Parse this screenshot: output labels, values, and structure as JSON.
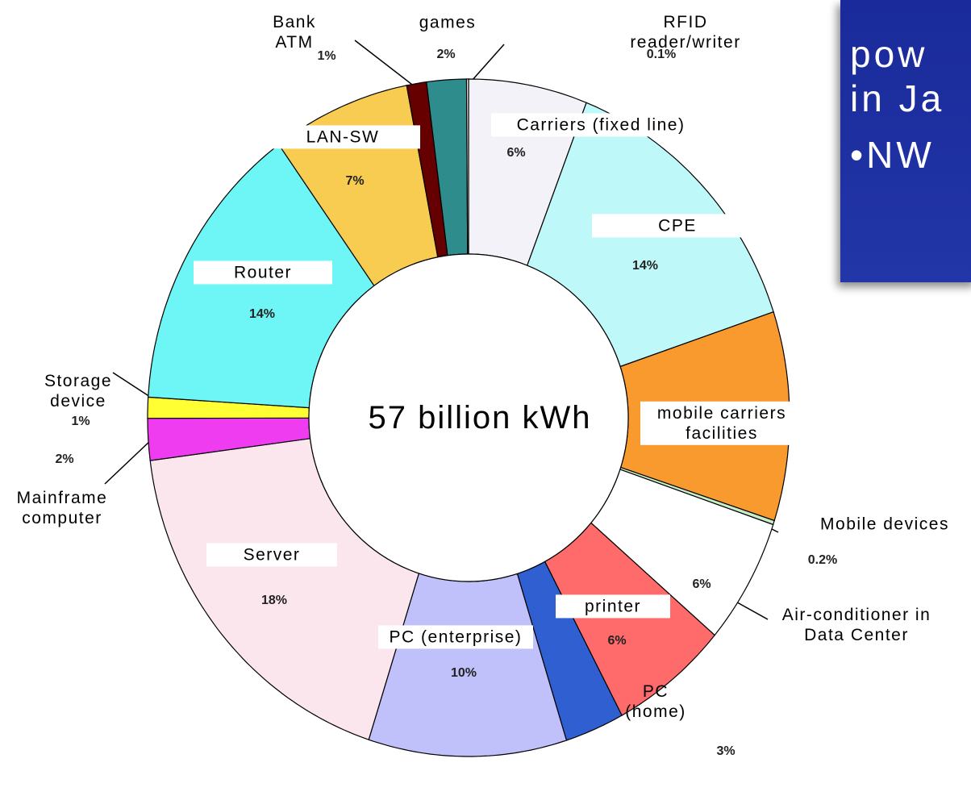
{
  "chart_data": {
    "type": "pie",
    "donut": true,
    "start": "top",
    "direction": "clockwise",
    "center_text": "57 billion kWh",
    "categories": [
      "Carriers (fixed line)",
      "CPE",
      "mobile carriers facilities",
      "Mobile devices",
      "Air-conditioner in Data Center",
      "printer",
      "PC (home)",
      "PC (enterprise)",
      "Server",
      "Mainframe computer",
      "Storage device",
      "Router",
      "LAN-SW",
      "Bank ATM",
      "games",
      "RFID reader/writer"
    ],
    "values": [
      6,
      14,
      10,
      0.2,
      6,
      6,
      3,
      10,
      18,
      2,
      1,
      14,
      7,
      1,
      2,
      0.1
    ],
    "value_labels": [
      "6%",
      "14%",
      null,
      "0.2%",
      "6%",
      "6%",
      "3%",
      "10%",
      "18%",
      "2%",
      "1%",
      "14%",
      "7%",
      "1%",
      "2%",
      "0.1%"
    ],
    "colors": [
      "#f2f2f8",
      "#bff8f8",
      "#f99a2e",
      "#c8ecc8",
      "#ffffff",
      "#ff6b6b",
      "#2f5fd0",
      "#c0c0fa",
      "#fbe6ee",
      "#f03cf0",
      "#ffff33",
      "#6ef5f5",
      "#f8cc50",
      "#660000",
      "#2f8c8c",
      "#ffffff"
    ]
  },
  "slide_text": [
    "pow",
    "in Ja",
    "•NW"
  ]
}
